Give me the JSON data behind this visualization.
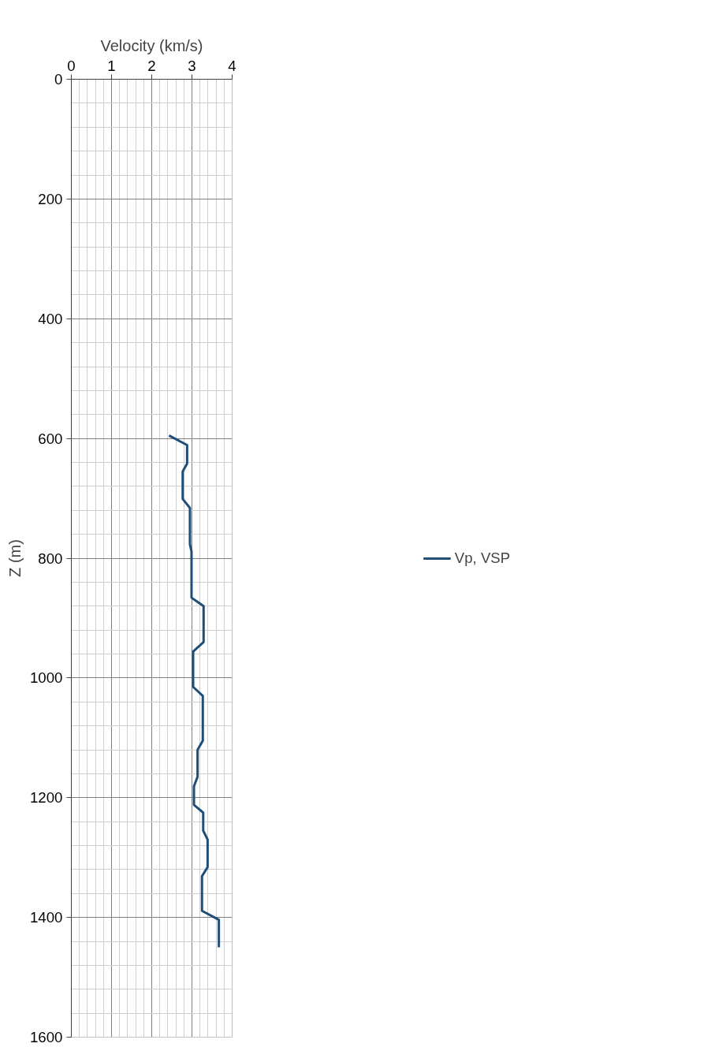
{
  "chart_data": {
    "type": "line",
    "xlabel": "Velocity (km/s)",
    "ylabel": "Z (m)",
    "xlim": [
      0,
      4
    ],
    "xticks": [
      0,
      1,
      2,
      3,
      4
    ],
    "ylim": [
      1600,
      0
    ],
    "yticks": [
      0,
      200,
      400,
      600,
      800,
      1000,
      1200,
      1400,
      1600
    ],
    "grid": true,
    "legend": "right",
    "marker": "none",
    "line_style": "solid",
    "series": [
      {
        "name": "Vp, VSP",
        "color": "#1f4e79",
        "x": [
          2.43,
          2.88,
          2.88,
          2.77,
          2.77,
          2.95,
          2.95,
          2.99,
          2.99,
          3.29,
          3.29,
          3.03,
          3.03,
          3.27,
          3.27,
          3.14,
          3.14,
          3.05,
          3.05,
          3.28,
          3.28,
          3.39,
          3.39,
          3.25,
          3.25,
          3.67,
          3.67
        ],
        "values": [
          595,
          611,
          642,
          655,
          701,
          716,
          777,
          789,
          866,
          880,
          940,
          956,
          1015,
          1030,
          1105,
          1120,
          1165,
          1181,
          1212,
          1225,
          1255,
          1270,
          1316,
          1331,
          1389,
          1404,
          1450
        ]
      }
    ]
  }
}
